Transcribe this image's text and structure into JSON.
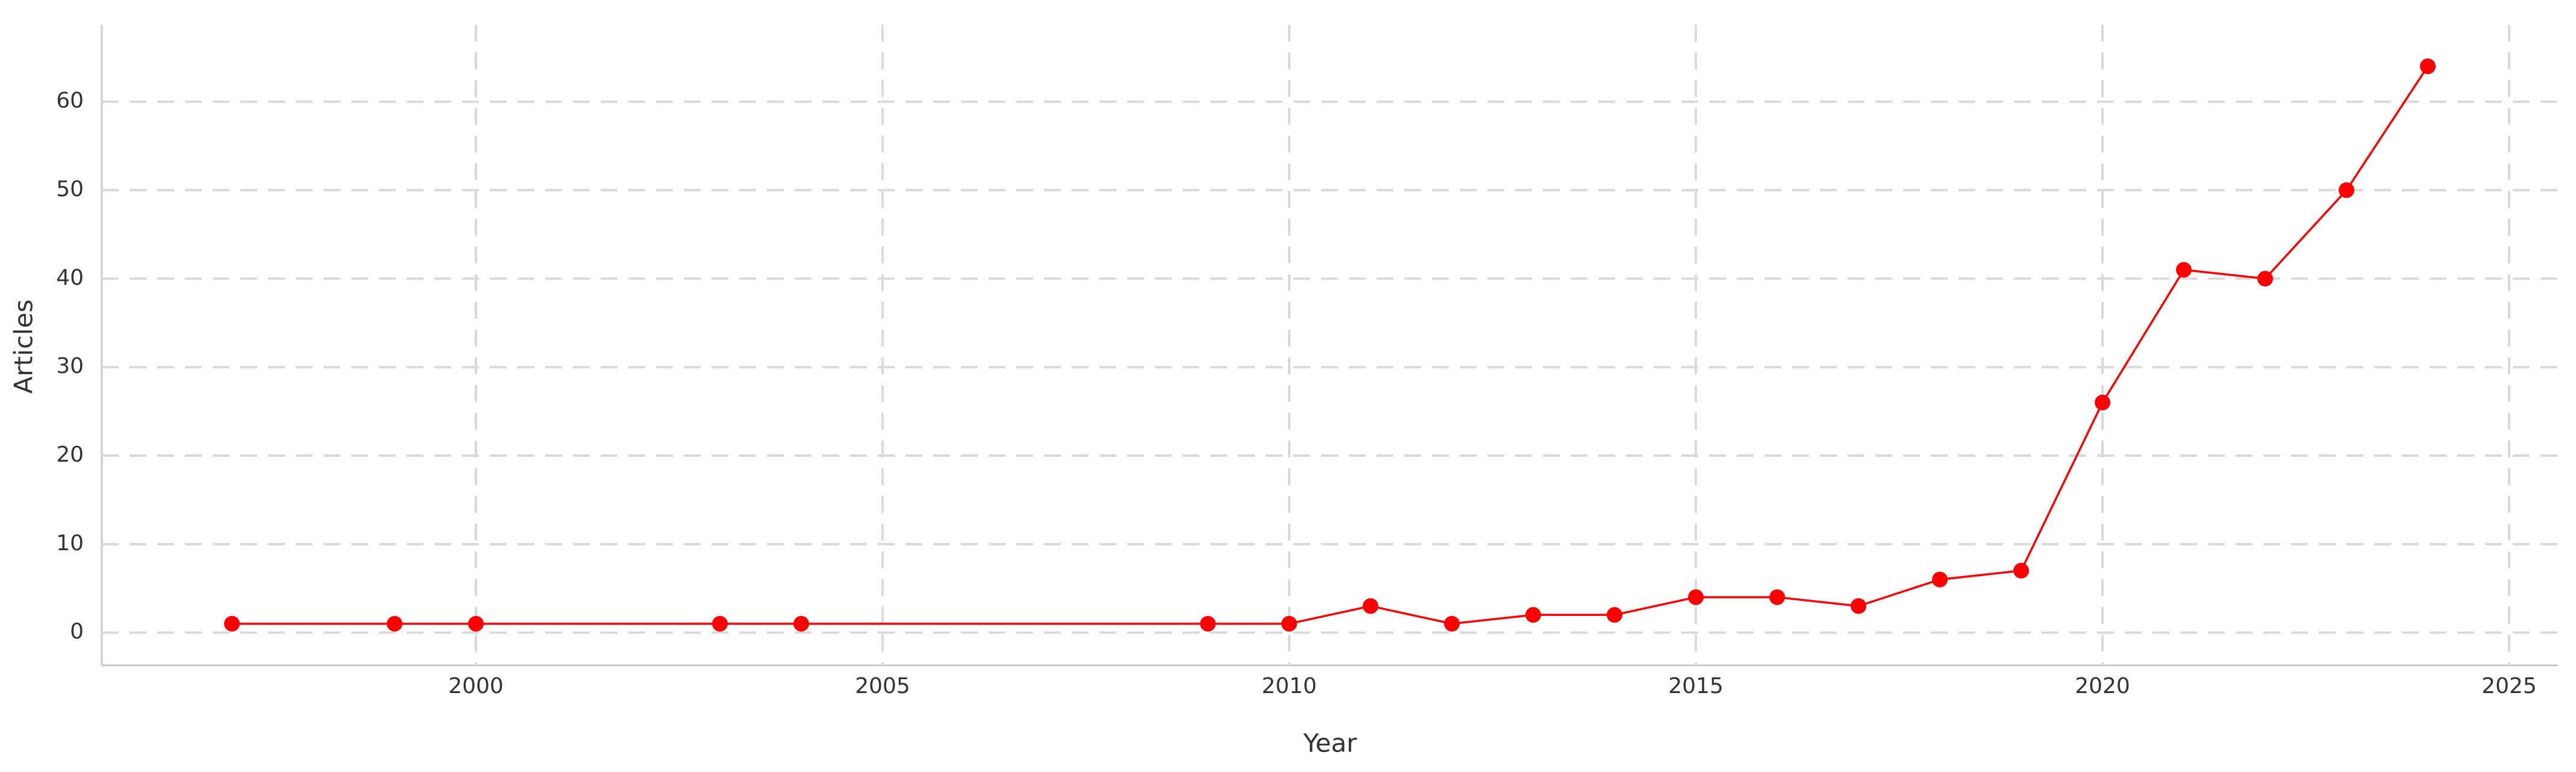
{
  "chart_data": {
    "type": "line",
    "x_label": "Year",
    "y_label": "Articles",
    "x": [
      1997,
      1999,
      2000,
      2003,
      2004,
      2009,
      2010,
      2011,
      2012,
      2013,
      2014,
      2015,
      2016,
      2017,
      2018,
      2019,
      2020,
      2021,
      2022,
      2023,
      2024
    ],
    "series": [
      {
        "color": "#ff0000",
        "values": [
          1,
          1,
          1,
          1,
          1,
          1,
          1,
          3,
          1,
          2,
          2,
          4,
          4,
          3,
          6,
          7,
          26,
          41,
          40,
          50,
          64
        ]
      }
    ],
    "xlim": [
      1995.4,
      2025.6
    ],
    "ylim": [
      -3.7,
      68.7
    ],
    "xticks": [
      2000,
      2005,
      2010,
      2015,
      2020,
      2025
    ],
    "yticks": [
      0,
      10,
      20,
      30,
      40,
      50,
      60
    ],
    "grid": true
  }
}
